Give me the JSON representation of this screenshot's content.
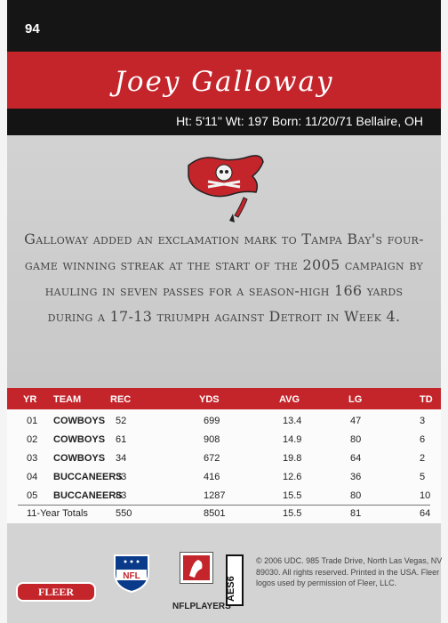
{
  "card": {
    "number": "94",
    "player_name": "Joey Galloway",
    "bio": "Ht: 5'11\" Wt: 197 Born: 11/20/71 Bellaire, OH",
    "blurb": "Galloway added an exclamation mark to Tampa Bay's four-game winning streak at the start of the 2005 campaign by hauling in seven passes for a season-high 166 yards during a 17-13 triumph against Detroit in Week 4."
  },
  "stats": {
    "headers": [
      "YR",
      "TEAM",
      "REC",
      "YDS",
      "AVG",
      "LG",
      "TD"
    ],
    "rows": [
      [
        "01",
        "COWBOYS",
        "52",
        "699",
        "13.4",
        "47",
        "3"
      ],
      [
        "02",
        "COWBOYS",
        "61",
        "908",
        "14.9",
        "80",
        "6"
      ],
      [
        "03",
        "COWBOYS",
        "34",
        "672",
        "19.8",
        "64",
        "2"
      ],
      [
        "04",
        "BUCCANEERS",
        "33",
        "416",
        "12.6",
        "36",
        "5"
      ],
      [
        "05",
        "BUCCANEERS",
        "83",
        "1287",
        "15.5",
        "80",
        "10"
      ]
    ],
    "totals": [
      "11-Year Totals",
      "550",
      "8501",
      "15.5",
      "81",
      "64"
    ]
  },
  "footer": {
    "fleer": "FLEER",
    "nfl_text": "NFL",
    "nflplayers": "NFLPLAYERS",
    "aes": "AES6",
    "legal": "© 2006 UDC. 985 Trade Drive, North Las Vegas, NV 89030. All rights reserved. Printed in the USA. Fleer logos used by permission of Fleer, LLC."
  },
  "colors": {
    "accent_red": "#c4252b",
    "black": "#151515",
    "panel_gray": "#cfcfcf"
  }
}
